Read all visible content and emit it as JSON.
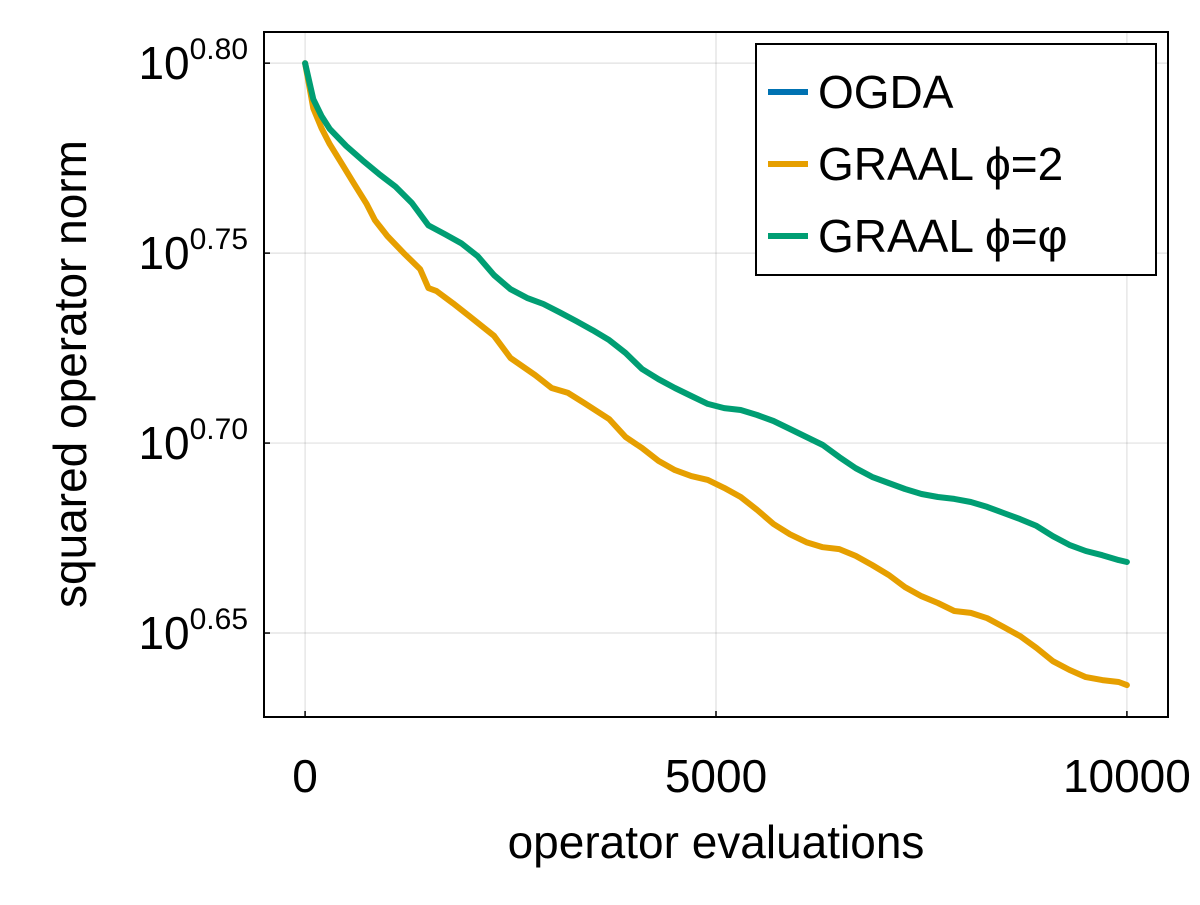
{
  "chart_data": {
    "type": "line",
    "xlabel": "operator evaluations",
    "ylabel": "squared operator norm",
    "xlim": [
      -500,
      10500
    ],
    "ylim_log10": [
      0.6279,
      0.8082
    ],
    "y_scale": "log10",
    "grid": true,
    "legend_placement": "top-right",
    "x_ticks": [
      {
        "value": 0,
        "label": "0"
      },
      {
        "value": 5000,
        "label": "5000"
      },
      {
        "value": 10000,
        "label": "10000"
      }
    ],
    "y_ticks": [
      {
        "log10": 0.65,
        "base": "10",
        "exponent": "0.65"
      },
      {
        "log10": 0.7,
        "base": "10",
        "exponent": "0.70"
      },
      {
        "log10": 0.75,
        "base": "10",
        "exponent": "0.75"
      },
      {
        "log10": 0.8,
        "base": "10",
        "exponent": "0.80"
      }
    ],
    "series": [
      {
        "name": "OGDA",
        "color": "#0072b2",
        "x": [],
        "log10_y": []
      },
      {
        "name": "GRAAL ϕ=2",
        "color": "#e69f00",
        "x": [
          0,
          100,
          200,
          300,
          450,
          600,
          750,
          850,
          1000,
          1200,
          1400,
          1500,
          1600,
          1800,
          2000,
          2300,
          2500,
          2800,
          3000,
          3200,
          3400,
          3700,
          3900,
          4100,
          4300,
          4500,
          4700,
          4900,
          5100,
          5300,
          5500,
          5700,
          5900,
          6100,
          6300,
          6500,
          6700,
          6900,
          7100,
          7300,
          7500,
          7700,
          7900,
          8100,
          8300,
          8500,
          8700,
          8900,
          9100,
          9300,
          9500,
          9700,
          9900,
          10000
        ],
        "log10_y": [
          0.8,
          0.7881,
          0.7829,
          0.7787,
          0.7734,
          0.7681,
          0.7629,
          0.7587,
          0.7545,
          0.75,
          0.7458,
          0.7408,
          0.74,
          0.7368,
          0.7334,
          0.7282,
          0.7224,
          0.7179,
          0.7145,
          0.7132,
          0.7105,
          0.7063,
          0.7016,
          0.6987,
          0.6953,
          0.6929,
          0.6913,
          0.6903,
          0.6882,
          0.6858,
          0.6824,
          0.6787,
          0.676,
          0.6739,
          0.6726,
          0.6721,
          0.6703,
          0.6679,
          0.6653,
          0.6621,
          0.6597,
          0.6579,
          0.6558,
          0.6553,
          0.6539,
          0.6516,
          0.6492,
          0.6461,
          0.6426,
          0.6403,
          0.6384,
          0.6376,
          0.6371,
          0.6363
        ]
      },
      {
        "name": "GRAAL ϕ=φ",
        "color": "#009e73",
        "x": [
          0,
          100,
          200,
          300,
          500,
          700,
          900,
          1100,
          1300,
          1500,
          1700,
          1900,
          2100,
          2300,
          2500,
          2700,
          2900,
          3100,
          3300,
          3500,
          3700,
          3900,
          4100,
          4300,
          4500,
          4700,
          4900,
          5100,
          5300,
          5500,
          5700,
          5900,
          6100,
          6300,
          6500,
          6700,
          6900,
          7100,
          7300,
          7500,
          7700,
          7900,
          8100,
          8300,
          8500,
          8700,
          8900,
          9100,
          9300,
          9500,
          9700,
          9900,
          10000
        ],
        "log10_y": [
          0.8,
          0.7905,
          0.7861,
          0.7827,
          0.7782,
          0.7744,
          0.7708,
          0.7675,
          0.7632,
          0.7573,
          0.755,
          0.7526,
          0.7492,
          0.7442,
          0.7405,
          0.7382,
          0.7366,
          0.7344,
          0.7321,
          0.7297,
          0.7271,
          0.7237,
          0.7195,
          0.7168,
          0.7145,
          0.7124,
          0.7103,
          0.7092,
          0.7087,
          0.7074,
          0.7058,
          0.7037,
          0.7016,
          0.6995,
          0.6963,
          0.6934,
          0.6911,
          0.6895,
          0.6879,
          0.6866,
          0.6858,
          0.6853,
          0.6845,
          0.6832,
          0.6816,
          0.68,
          0.6782,
          0.6755,
          0.6732,
          0.6716,
          0.6705,
          0.6692,
          0.6687
        ]
      }
    ]
  }
}
